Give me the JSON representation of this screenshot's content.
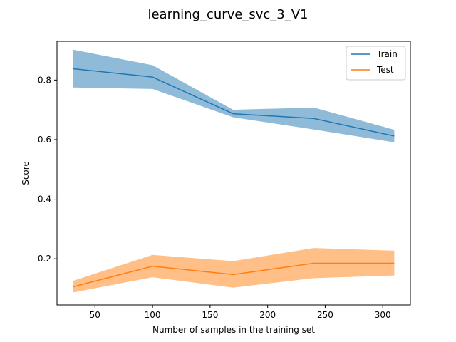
{
  "chart_data": {
    "type": "line",
    "title": "learning_curve_svc_3_V1",
    "xlabel": "Number of samples in the training set",
    "ylabel": "Score",
    "xlim": [
      17,
      324
    ],
    "ylim": [
      0.045,
      0.93
    ],
    "xticks": [
      50,
      100,
      150,
      200,
      250,
      300
    ],
    "yticks": [
      0.2,
      0.4,
      0.6,
      0.8
    ],
    "grid": false,
    "legend_position": "top-right",
    "x": [
      31,
      100,
      170,
      240,
      310
    ],
    "series": [
      {
        "name": "Train",
        "color": "#1f77b4",
        "band_color": "#1f77b4",
        "values": [
          0.838,
          0.81,
          0.687,
          0.671,
          0.612
        ],
        "upper": [
          0.902,
          0.85,
          0.7,
          0.708,
          0.633
        ],
        "lower": [
          0.775,
          0.77,
          0.675,
          0.634,
          0.591
        ]
      },
      {
        "name": "Test",
        "color": "#ff7f0e",
        "band_color": "#ff7f0e",
        "values": [
          0.106,
          0.175,
          0.147,
          0.185,
          0.185
        ],
        "upper": [
          0.126,
          0.213,
          0.192,
          0.236,
          0.227
        ],
        "lower": [
          0.087,
          0.138,
          0.103,
          0.135,
          0.144
        ]
      }
    ]
  }
}
